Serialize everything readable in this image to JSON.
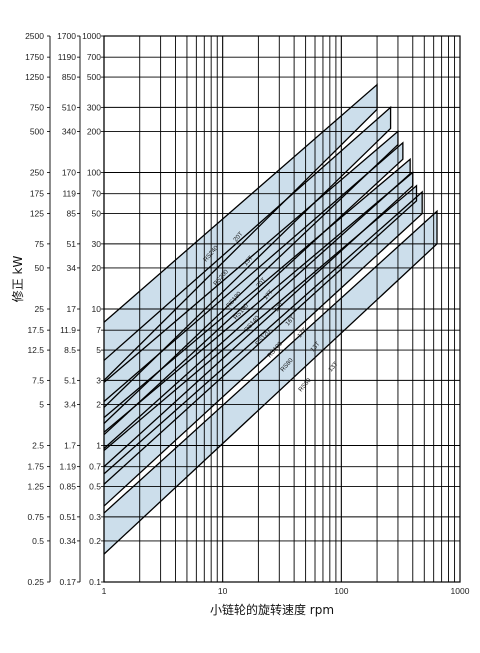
{
  "chart_data": {
    "type": "line",
    "xlabel": "小链轮的旋转速度  rpm",
    "ylabel": "修正 kW",
    "x_scale": "log",
    "y_scale": "log",
    "xlim": [
      1,
      1000
    ],
    "ylim": [
      0.1,
      1000
    ],
    "x_tick_labels": [
      "1",
      "10",
      "100",
      "1000"
    ],
    "y_tick_values": [
      0.1,
      0.2,
      0.3,
      0.5,
      0.7,
      1,
      2,
      3,
      5,
      7,
      10,
      20,
      30,
      50,
      70,
      100,
      200,
      300,
      500,
      700,
      1000
    ],
    "y_tick_labels_3": [
      "0.1",
      "0.2",
      "0.3",
      "0.5",
      "0.7",
      "1",
      "2",
      "3",
      "5",
      "7",
      "10",
      "20",
      "30",
      "50",
      "70",
      "100",
      "200",
      "300",
      "500",
      "700",
      "1000"
    ],
    "y_tick_labels_2": [
      "0.17",
      "0.34",
      "0.51",
      "0.85",
      "1.19",
      "1.7",
      "3.4",
      "5.1",
      "8.5",
      "11.9",
      "17",
      "34",
      "51",
      "85",
      "119",
      "170",
      "340",
      "510",
      "850",
      "1190",
      "1700"
    ],
    "y_tick_labels_1": [
      "0.25",
      "0.5",
      "0.75",
      "1.25",
      "1.75",
      "2.5",
      "5",
      "7.5",
      "12.5",
      "17.5",
      "25",
      "50",
      "75",
      "125",
      "175",
      "250",
      "500",
      "750",
      "1250",
      "1750",
      "2500"
    ],
    "series": [
      {
        "name": "RS240",
        "teeth": "20T",
        "x_start": 1,
        "y_low": 3.0,
        "y_high": 8.0,
        "x_end": 200,
        "y_end_low": 290,
        "y_end_high": 440
      },
      {
        "name": "RS200",
        "teeth": "15T",
        "x_start": 1,
        "y_low": 1.9,
        "y_high": 4.2,
        "x_end": 260,
        "y_end_low": 210,
        "y_end_high": 300
      },
      {
        "name": "RS180",
        "teeth": "20T",
        "x_start": 1,
        "y_low": 1.45,
        "y_high": 2.9,
        "x_end": 300,
        "y_end_low": 160,
        "y_end_high": 200
      },
      {
        "name": "RS160",
        "teeth": "17T",
        "x_start": 1,
        "y_low": 1.2,
        "y_high": 2.1,
        "x_end": 330,
        "y_end_low": 125,
        "y_end_high": 165
      },
      {
        "name": "RS140",
        "teeth": "17T",
        "x_start": 1,
        "y_low": 0.95,
        "y_high": 1.6,
        "x_end": 380,
        "y_end_low": 98,
        "y_end_high": 125
      },
      {
        "name": "RS120",
        "teeth": "16T",
        "x_start": 1,
        "y_low": 0.7,
        "y_high": 1.25,
        "x_end": 400,
        "y_end_low": 80,
        "y_end_high": 100
      },
      {
        "name": "RS100",
        "teeth": "17T",
        "x_start": 1,
        "y_low": 0.52,
        "y_high": 0.92,
        "x_end": 430,
        "y_end_low": 62,
        "y_end_high": 80
      },
      {
        "name": "RS80",
        "teeth": "13T",
        "x_start": 1,
        "y_low": 0.36,
        "y_high": 0.62,
        "x_end": 480,
        "y_end_low": 50,
        "y_end_high": 72
      },
      {
        "name": "RS60",
        "teeth": "13T",
        "x_start": 1,
        "y_low": 0.16,
        "y_high": 0.32,
        "x_end": 640,
        "y_end_low": 30,
        "y_end_high": 52
      }
    ],
    "band_color": "#c9dcea",
    "grid": true
  }
}
